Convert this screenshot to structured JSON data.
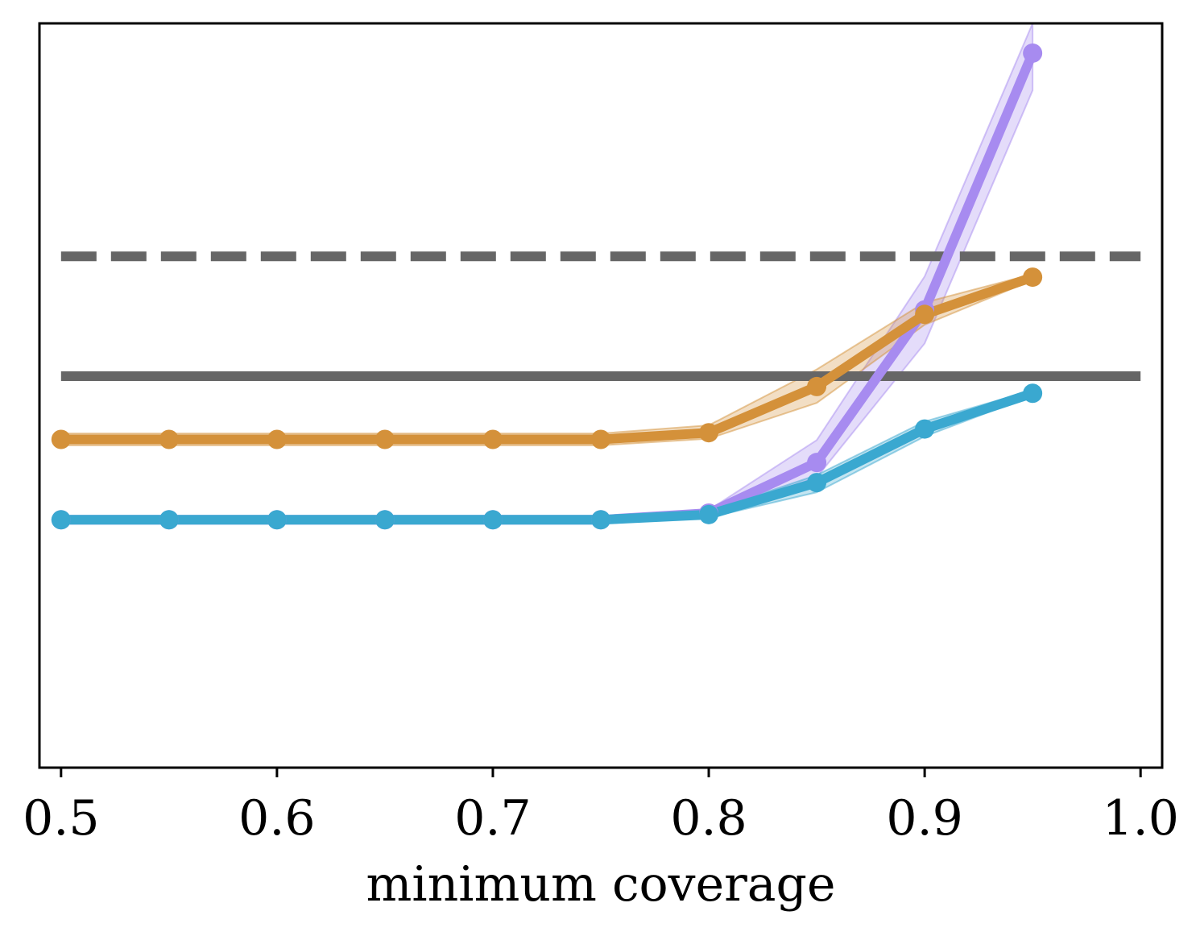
{
  "chart_data": {
    "type": "line",
    "xlabel": "minimum coverage",
    "ylabel": "",
    "title": "",
    "xlim": [
      0.49,
      1.01
    ],
    "ylim": [
      0,
      1
    ],
    "xticks": [
      0.5,
      0.6,
      0.7,
      0.8,
      0.9,
      1.0
    ],
    "xtick_labels": [
      "0.5",
      "0.6",
      "0.7",
      "0.8",
      "0.9",
      "1.0"
    ],
    "yticks_visible": false,
    "grid": false,
    "legend": "none",
    "reference_lines": [
      {
        "style": "dashed",
        "y": 0.687,
        "x": [
          0.5,
          1.0
        ],
        "color": "#666666"
      },
      {
        "style": "solid",
        "y": 0.526,
        "x": [
          0.5,
          1.0
        ],
        "color": "#666666"
      }
    ],
    "series": [
      {
        "color": "#A78BF0",
        "x": [
          0.5,
          0.55,
          0.6,
          0.65,
          0.7,
          0.75,
          0.8,
          0.85,
          0.9,
          0.95
        ],
        "values": [
          0.333,
          0.333,
          0.333,
          0.333,
          0.333,
          0.333,
          0.342,
          0.41,
          0.615,
          0.96
        ],
        "lower": [
          0.331,
          0.331,
          0.331,
          0.331,
          0.331,
          0.331,
          0.338,
          0.39,
          0.57,
          0.91
        ],
        "upper": [
          0.335,
          0.335,
          0.335,
          0.335,
          0.335,
          0.335,
          0.346,
          0.44,
          0.66,
          1.0
        ]
      },
      {
        "color": "#D4913A",
        "x": [
          0.5,
          0.55,
          0.6,
          0.65,
          0.7,
          0.75,
          0.8,
          0.85,
          0.9,
          0.95
        ],
        "values": [
          0.441,
          0.441,
          0.441,
          0.441,
          0.441,
          0.441,
          0.45,
          0.512,
          0.609,
          0.659
        ],
        "lower": [
          0.433,
          0.433,
          0.433,
          0.433,
          0.433,
          0.433,
          0.442,
          0.49,
          0.595,
          0.655
        ],
        "upper": [
          0.449,
          0.449,
          0.449,
          0.449,
          0.449,
          0.449,
          0.46,
          0.535,
          0.625,
          0.663
        ]
      },
      {
        "color": "#3AA8D0",
        "x": [
          0.5,
          0.55,
          0.6,
          0.65,
          0.7,
          0.75,
          0.8,
          0.85,
          0.9,
          0.95
        ],
        "values": [
          0.333,
          0.333,
          0.333,
          0.333,
          0.333,
          0.333,
          0.34,
          0.383,
          0.455,
          0.503
        ],
        "lower": [
          0.329,
          0.329,
          0.329,
          0.329,
          0.329,
          0.329,
          0.336,
          0.37,
          0.445,
          0.5
        ],
        "upper": [
          0.337,
          0.337,
          0.337,
          0.337,
          0.337,
          0.337,
          0.344,
          0.393,
          0.465,
          0.507
        ]
      }
    ]
  }
}
